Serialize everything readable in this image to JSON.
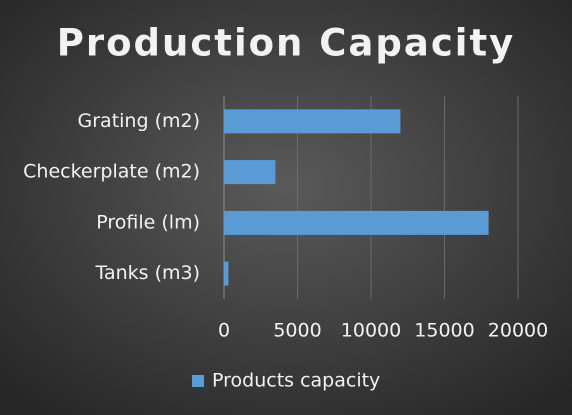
{
  "chart_data": {
    "type": "bar",
    "orientation": "horizontal",
    "title": "Production Capacity",
    "categories": [
      "Grating (m2)",
      "Checkerplate (m2)",
      "Profile (lm)",
      "Tanks (m3)"
    ],
    "series": [
      {
        "name": "Products capacity",
        "color": "#5b9bd5",
        "values": [
          12000,
          3500,
          18000,
          300
        ]
      }
    ],
    "xlim": [
      0,
      20000
    ],
    "xticks": [
      0,
      5000,
      10000,
      15000,
      20000
    ],
    "grid": true,
    "legend": "bottom"
  }
}
